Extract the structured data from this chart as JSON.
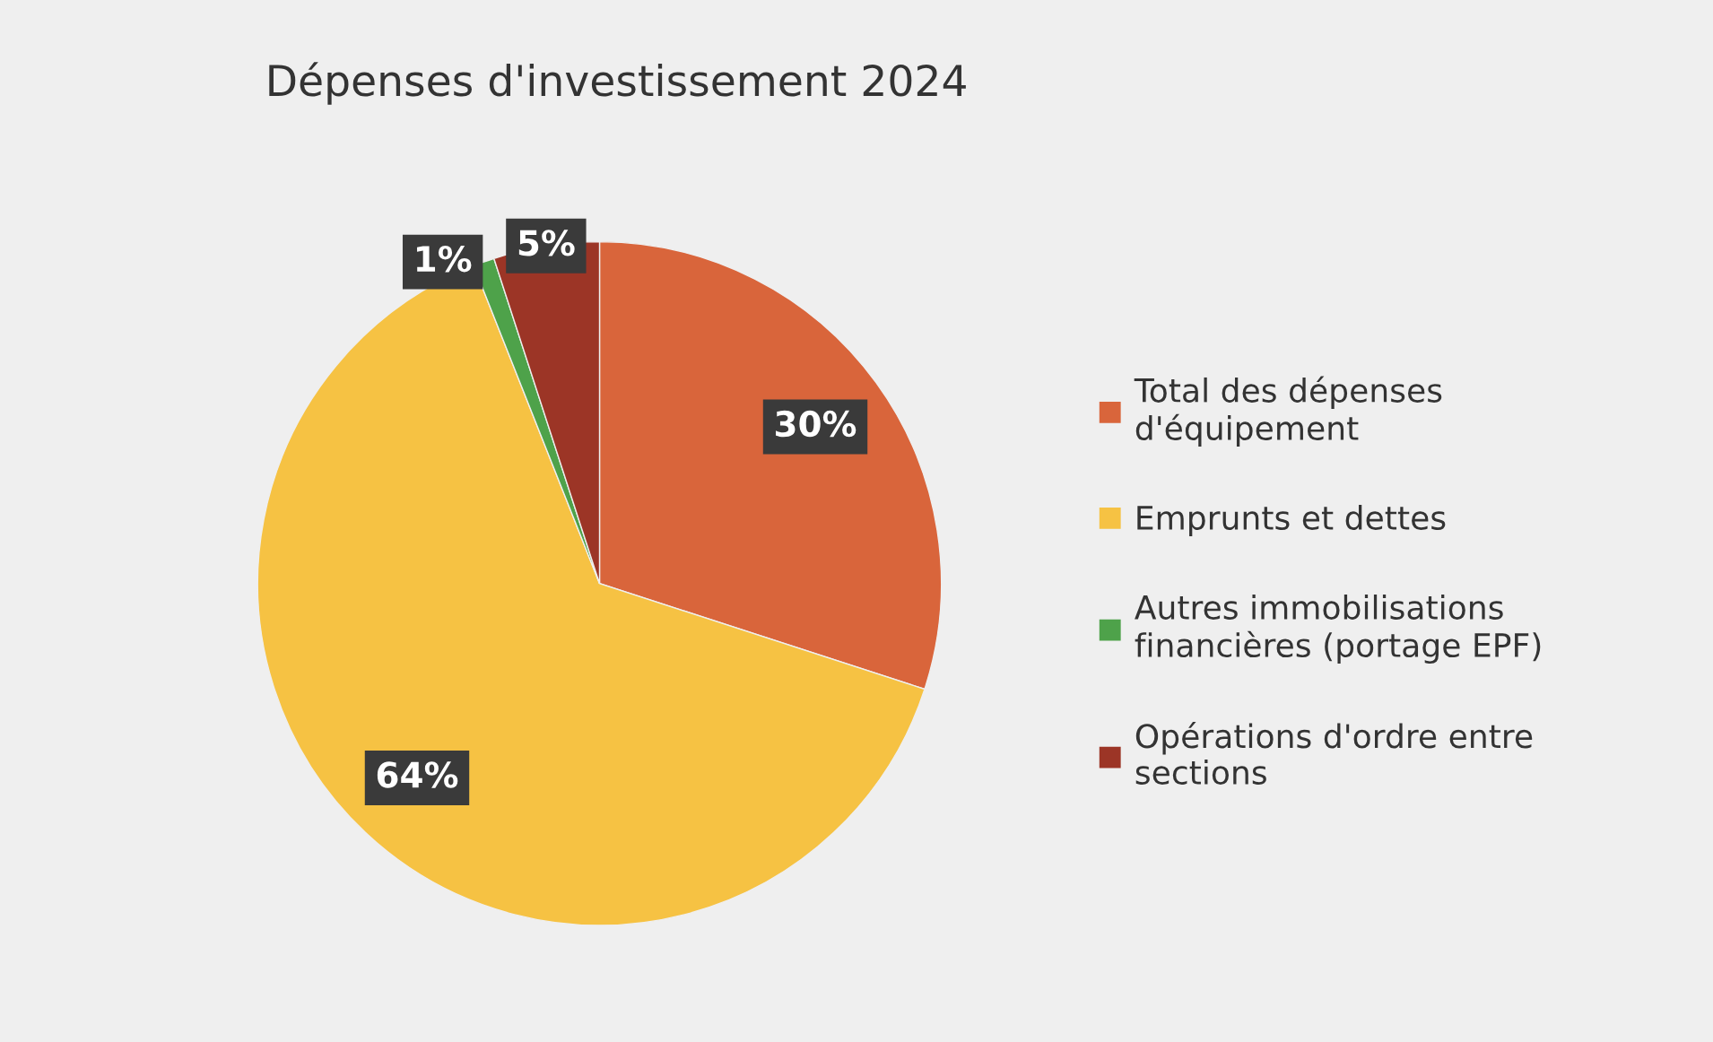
{
  "chart_data": {
    "type": "pie",
    "title": "Dépenses d'investissement 2024",
    "categories": [
      "Total des dépenses d'équipement",
      "Emprunts et dettes",
      "Autres immobilisations financières (portage EPF)",
      "Opérations d'ordre entre sections"
    ],
    "values": [
      30,
      64,
      1,
      5
    ],
    "colors": [
      "#d9653b",
      "#f6c243",
      "#4ea24a",
      "#9c3526"
    ],
    "value_labels": [
      "30%",
      "64%",
      "1%",
      "5%"
    ],
    "legend": "right"
  }
}
